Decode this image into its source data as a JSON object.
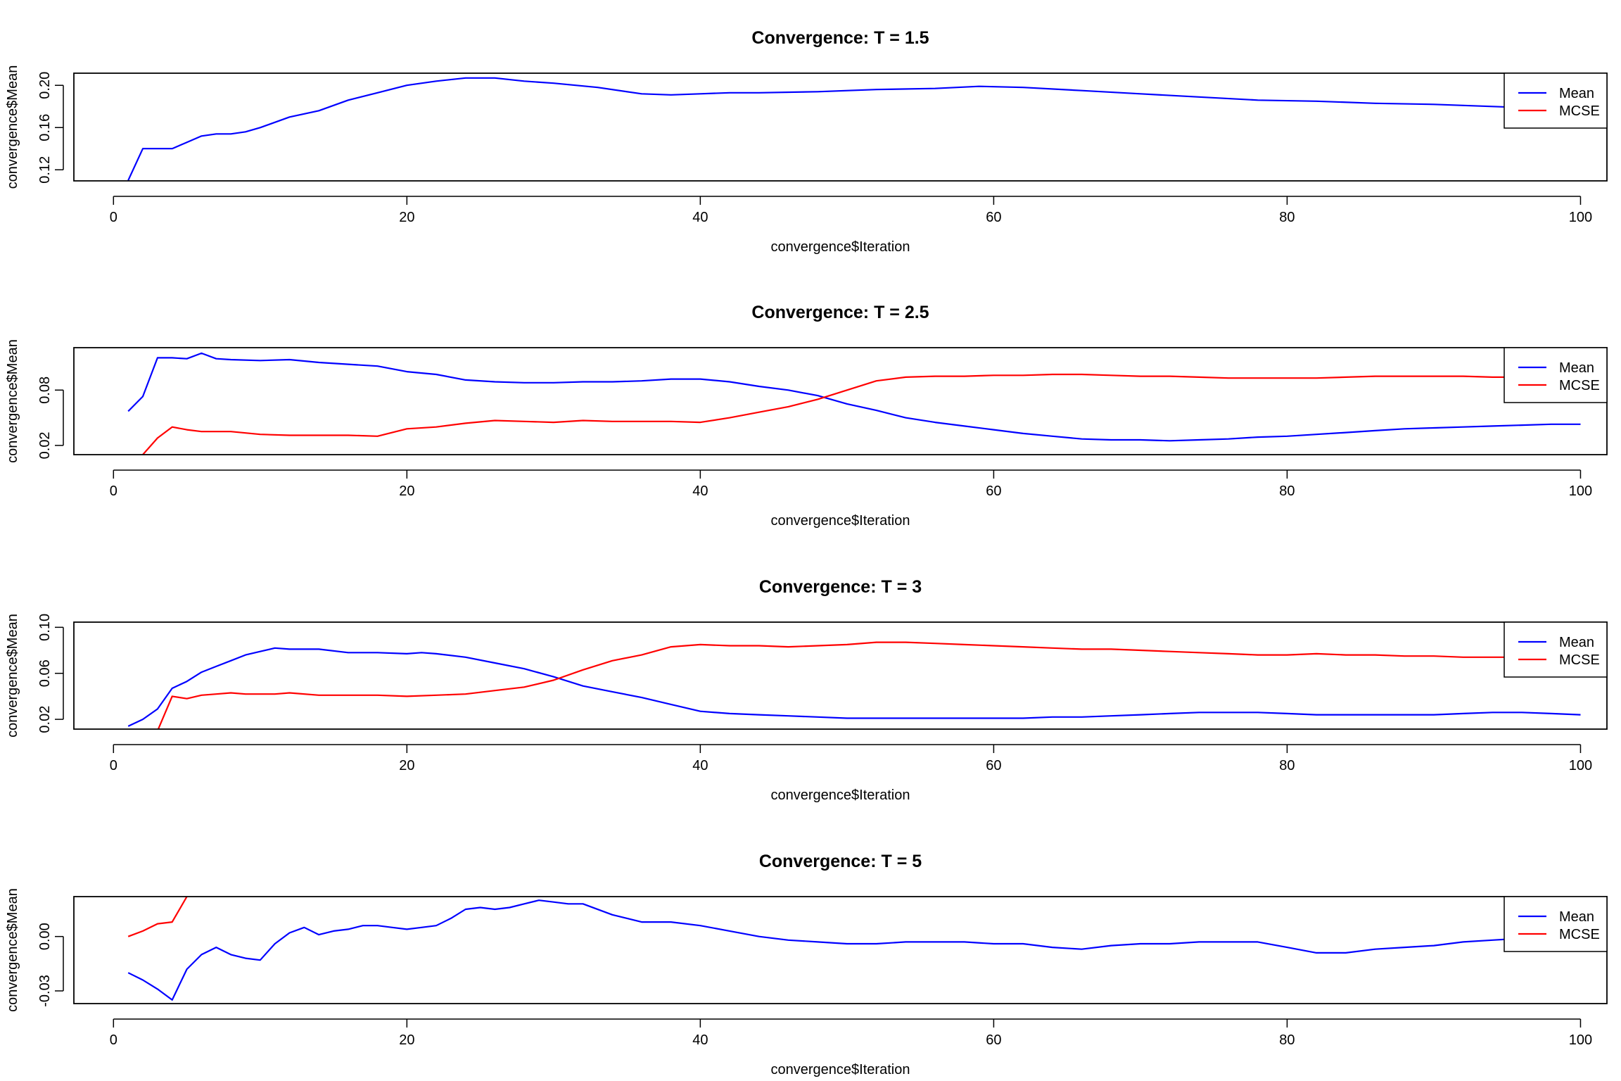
{
  "colors": {
    "mean": "#0000ff",
    "mcse": "#ff0000",
    "axis": "#000000",
    "background": "#ffffff"
  },
  "chart_data": [
    {
      "type": "line",
      "title": "Convergence: T = 1.5",
      "xlabel": "convergence$Iteration",
      "ylabel": "convergence$Mean",
      "xlim": [
        -2.7,
        101.8
      ],
      "ylim": [
        0.1095,
        0.2115
      ],
      "xticks": [
        "0",
        "20",
        "40",
        "60",
        "80",
        "100"
      ],
      "yticks": [
        "0.12",
        "0.16",
        "0.20"
      ],
      "legend": {
        "position": "top-right",
        "entries": [
          "Mean",
          "MCSE"
        ]
      },
      "series": [
        {
          "name": "Mean",
          "color": "#0000ff",
          "x": [
            1,
            2,
            3,
            4,
            5,
            6,
            7,
            8,
            9,
            10,
            12,
            14,
            16,
            18,
            20,
            22,
            24,
            26,
            28,
            30,
            33,
            36,
            38,
            40,
            42,
            44,
            48,
            52,
            56,
            59,
            62,
            66,
            70,
            74,
            78,
            82,
            86,
            90,
            94,
            98
          ],
          "y": [
            0.11,
            0.14,
            0.14,
            0.14,
            0.146,
            0.152,
            0.154,
            0.154,
            0.156,
            0.16,
            0.17,
            0.176,
            0.186,
            0.193,
            0.2,
            0.204,
            0.207,
            0.207,
            0.204,
            0.202,
            0.198,
            0.192,
            0.191,
            0.192,
            0.193,
            0.193,
            0.194,
            0.196,
            0.197,
            0.199,
            0.198,
            0.195,
            0.192,
            0.189,
            0.186,
            0.185,
            0.183,
            0.182,
            0.18,
            0.178
          ]
        },
        {
          "name": "MCSE",
          "color": "#ff0000",
          "x": [],
          "y": []
        }
      ]
    },
    {
      "type": "line",
      "title": "Convergence: T = 2.5",
      "xlabel": "convergence$Iteration",
      "ylabel": "convergence$Mean",
      "xlim": [
        -2.7,
        101.8
      ],
      "ylim": [
        0.01,
        0.126
      ],
      "xticks": [
        "0",
        "20",
        "40",
        "60",
        "80",
        "100"
      ],
      "yticks": [
        "0.02",
        "0.08"
      ],
      "legend": {
        "position": "top-right",
        "entries": [
          "Mean",
          "MCSE"
        ]
      },
      "series": [
        {
          "name": "Mean",
          "color": "#0000ff",
          "x": [
            1,
            2,
            3,
            4,
            5,
            6,
            7,
            8,
            10,
            12,
            14,
            16,
            18,
            20,
            22,
            24,
            26,
            28,
            30,
            32,
            34,
            36,
            38,
            40,
            42,
            44,
            46,
            48,
            50,
            52,
            54,
            56,
            58,
            60,
            62,
            64,
            66,
            68,
            70,
            72,
            74,
            76,
            78,
            80,
            82,
            84,
            86,
            88,
            90,
            92,
            94,
            96,
            98,
            100
          ],
          "y": [
            0.057,
            0.073,
            0.115,
            0.115,
            0.114,
            0.12,
            0.114,
            0.113,
            0.112,
            0.113,
            0.11,
            0.108,
            0.106,
            0.1,
            0.097,
            0.091,
            0.089,
            0.088,
            0.088,
            0.089,
            0.089,
            0.09,
            0.092,
            0.092,
            0.089,
            0.084,
            0.08,
            0.074,
            0.065,
            0.058,
            0.05,
            0.045,
            0.041,
            0.037,
            0.033,
            0.03,
            0.027,
            0.026,
            0.026,
            0.025,
            0.026,
            0.027,
            0.029,
            0.03,
            0.032,
            0.034,
            0.036,
            0.038,
            0.039,
            0.04,
            0.041,
            0.042,
            0.043,
            0.043
          ]
        },
        {
          "name": "MCSE",
          "color": "#ff0000",
          "x": [
            2,
            3,
            4,
            5,
            6,
            8,
            10,
            12,
            14,
            16,
            18,
            20,
            22,
            24,
            26,
            28,
            30,
            32,
            34,
            36,
            38,
            40,
            42,
            44,
            46,
            48,
            50,
            52,
            54,
            56,
            58,
            60,
            62,
            64,
            66,
            68,
            70,
            72,
            74,
            76,
            78,
            80,
            82,
            84,
            86,
            88,
            90,
            92,
            94,
            96,
            98
          ],
          "y": [
            0.01,
            0.028,
            0.04,
            0.037,
            0.035,
            0.035,
            0.032,
            0.031,
            0.031,
            0.031,
            0.03,
            0.038,
            0.04,
            0.044,
            0.047,
            0.046,
            0.045,
            0.047,
            0.046,
            0.046,
            0.046,
            0.045,
            0.05,
            0.056,
            0.062,
            0.07,
            0.08,
            0.09,
            0.094,
            0.095,
            0.095,
            0.096,
            0.096,
            0.097,
            0.097,
            0.096,
            0.095,
            0.095,
            0.094,
            0.093,
            0.093,
            0.093,
            0.093,
            0.094,
            0.095,
            0.095,
            0.095,
            0.095,
            0.094,
            0.094,
            0.094
          ]
        }
      ]
    },
    {
      "type": "line",
      "title": "Convergence: T = 3",
      "xlabel": "convergence$Iteration",
      "ylabel": "convergence$Mean",
      "xlim": [
        -2.7,
        101.8
      ],
      "ylim": [
        0.0115,
        0.1045
      ],
      "xticks": [
        "0",
        "20",
        "40",
        "60",
        "80",
        "100"
      ],
      "yticks": [
        "0.02",
        "0.06",
        "0.10"
      ],
      "legend": {
        "position": "top-right",
        "entries": [
          "Mean",
          "MCSE"
        ]
      },
      "series": [
        {
          "name": "Mean",
          "color": "#0000ff",
          "x": [
            1,
            2,
            3,
            4,
            5,
            6,
            7,
            8,
            9,
            10,
            11,
            12,
            14,
            16,
            18,
            20,
            21,
            22,
            24,
            26,
            28,
            30,
            32,
            34,
            36,
            38,
            40,
            42,
            44,
            46,
            48,
            50,
            52,
            54,
            56,
            58,
            60,
            62,
            64,
            66,
            68,
            70,
            72,
            74,
            76,
            78,
            80,
            82,
            84,
            86,
            88,
            90,
            92,
            94,
            96,
            98,
            100
          ],
          "y": [
            0.014,
            0.02,
            0.029,
            0.047,
            0.053,
            0.061,
            0.066,
            0.071,
            0.076,
            0.079,
            0.082,
            0.081,
            0.081,
            0.078,
            0.078,
            0.077,
            0.078,
            0.077,
            0.074,
            0.069,
            0.064,
            0.057,
            0.049,
            0.044,
            0.039,
            0.033,
            0.027,
            0.025,
            0.024,
            0.023,
            0.022,
            0.021,
            0.021,
            0.021,
            0.021,
            0.021,
            0.021,
            0.021,
            0.022,
            0.022,
            0.023,
            0.024,
            0.025,
            0.026,
            0.026,
            0.026,
            0.025,
            0.024,
            0.024,
            0.024,
            0.024,
            0.024,
            0.025,
            0.026,
            0.026,
            0.025,
            0.024
          ]
        },
        {
          "name": "MCSE",
          "color": "#ff0000",
          "x": [
            3,
            4,
            5,
            6,
            7,
            8,
            9,
            10,
            11,
            12,
            14,
            16,
            18,
            20,
            22,
            24,
            26,
            28,
            30,
            32,
            34,
            36,
            38,
            40,
            42,
            44,
            46,
            48,
            50,
            52,
            54,
            56,
            58,
            60,
            62,
            64,
            66,
            68,
            70,
            72,
            74,
            76,
            78,
            80,
            82,
            84,
            86,
            88,
            90,
            92,
            94,
            96,
            98
          ],
          "y": [
            0.01,
            0.04,
            0.038,
            0.041,
            0.042,
            0.043,
            0.042,
            0.042,
            0.042,
            0.043,
            0.041,
            0.041,
            0.041,
            0.04,
            0.041,
            0.042,
            0.045,
            0.048,
            0.054,
            0.063,
            0.071,
            0.076,
            0.083,
            0.085,
            0.084,
            0.084,
            0.083,
            0.084,
            0.085,
            0.087,
            0.087,
            0.086,
            0.085,
            0.084,
            0.083,
            0.082,
            0.081,
            0.081,
            0.08,
            0.079,
            0.078,
            0.077,
            0.076,
            0.076,
            0.077,
            0.076,
            0.076,
            0.075,
            0.075,
            0.074,
            0.074,
            0.074,
            0.073
          ]
        }
      ]
    },
    {
      "type": "line",
      "title": "Convergence: T = 5",
      "xlabel": "convergence$Iteration",
      "ylabel": "convergence$Mean",
      "xlim": [
        -2.7,
        101.8
      ],
      "ylim": [
        -0.037,
        0.022
      ],
      "xticks": [
        "0",
        "20",
        "40",
        "60",
        "80",
        "100"
      ],
      "yticks": [
        "-0.03",
        "0.00"
      ],
      "legend": {
        "position": "top-right",
        "entries": [
          "Mean",
          "MCSE"
        ]
      },
      "series": [
        {
          "name": "Mean",
          "color": "#0000ff",
          "x": [
            1,
            2,
            3,
            4,
            5,
            6,
            7,
            8,
            9,
            10,
            11,
            12,
            13,
            14,
            15,
            16,
            17,
            18,
            19,
            20,
            21,
            22,
            23,
            24,
            25,
            26,
            27,
            28,
            29,
            30,
            31,
            32,
            34,
            36,
            38,
            40,
            42,
            44,
            46,
            48,
            50,
            52,
            54,
            56,
            58,
            60,
            62,
            64,
            66,
            68,
            70,
            72,
            74,
            76,
            78,
            80,
            82,
            84,
            86,
            88,
            90,
            92,
            94,
            96,
            98
          ],
          "y": [
            -0.02,
            -0.024,
            -0.029,
            -0.035,
            -0.018,
            -0.01,
            -0.006,
            -0.01,
            -0.012,
            -0.013,
            -0.004,
            0.002,
            0.005,
            0.001,
            0.003,
            0.004,
            0.006,
            0.006,
            0.005,
            0.004,
            0.005,
            0.006,
            0.01,
            0.015,
            0.016,
            0.015,
            0.016,
            0.018,
            0.02,
            0.019,
            0.018,
            0.018,
            0.012,
            0.008,
            0.008,
            0.006,
            0.003,
            0.0,
            -0.002,
            -0.003,
            -0.004,
            -0.004,
            -0.003,
            -0.003,
            -0.003,
            -0.004,
            -0.004,
            -0.006,
            -0.007,
            -0.005,
            -0.004,
            -0.004,
            -0.003,
            -0.003,
            -0.003,
            -0.006,
            -0.009,
            -0.009,
            -0.007,
            -0.006,
            -0.005,
            -0.003,
            -0.002,
            -0.001,
            0.0
          ]
        },
        {
          "name": "MCSE",
          "color": "#ff0000",
          "x": [
            1,
            2,
            3,
            4,
            5
          ],
          "y": [
            0.0,
            0.003,
            0.007,
            0.008,
            0.022
          ]
        }
      ]
    }
  ]
}
